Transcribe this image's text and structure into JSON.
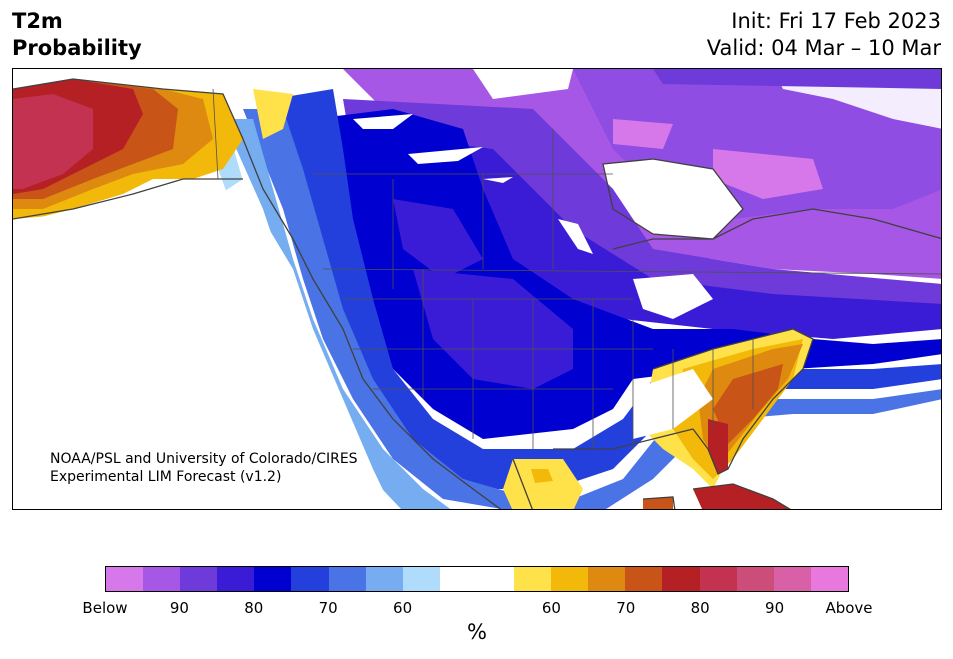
{
  "title": {
    "left_line1": "T2m",
    "left_line2": "Probability",
    "init": "Init: Fri 17 Feb 2023",
    "valid": "Valid: 04 Mar – 10 Mar"
  },
  "credit": {
    "line1": "NOAA/PSL and University of Colorado/CIRES",
    "line2": "Experimental LIM Forecast (v1.2)"
  },
  "colorbar": {
    "colors": [
      "#d678ea",
      "#a657e6",
      "#6e3ad9",
      "#3b1cd6",
      "#0000d0",
      "#2340dc",
      "#4a74e6",
      "#76acf0",
      "#aedcfa",
      "#ffffff",
      "#ffffff",
      "#ffe24a",
      "#f2b80a",
      "#de8a10",
      "#c85418",
      "#b42024",
      "#c33250",
      "#cc4d7a",
      "#d860a6",
      "#e878de"
    ],
    "tick_labels": [
      "Below",
      "90",
      "80",
      "70",
      "60",
      "60",
      "70",
      "80",
      "90",
      "Above"
    ],
    "units": "%"
  },
  "legend_levels": {
    "below": [
      "Below",
      "90",
      "80",
      "70",
      "60"
    ],
    "above": [
      "60",
      "70",
      "80",
      "90",
      "Above"
    ]
  }
}
